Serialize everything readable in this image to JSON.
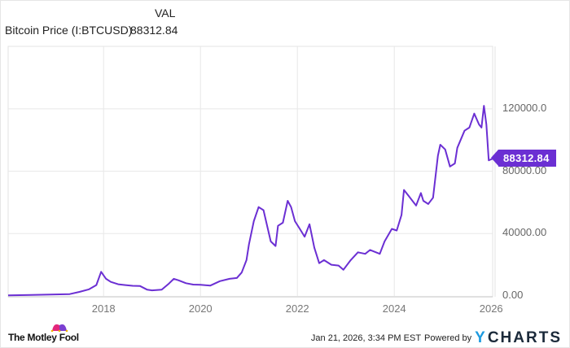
{
  "legend": {
    "column_header": "VAL",
    "series_name": "Bitcoin Price (I:BTCUSD)",
    "series_value": "88312.84"
  },
  "badge": {
    "value": "88312.84"
  },
  "footer": {
    "timestamp": "Jan 21, 2026, 3:34 PM EST",
    "powered_by": "Powered by",
    "provider_y": "Y",
    "provider_rest": "CHARTS",
    "brand": "The Motley Fool"
  },
  "colors": {
    "line": "#6b2fd3",
    "grid": "#e8e8e8",
    "brand_pink": "#e3277b",
    "brand_purple": "#7b3fd1",
    "ycharts_blue": "#1e9be0"
  },
  "chart_data": {
    "type": "line",
    "title": "Bitcoin Price (I:BTCUSD)",
    "xlabel": "",
    "ylabel": "",
    "ylim": [
      0,
      160000
    ],
    "xlim": [
      2016.03,
      2026.06
    ],
    "grid": true,
    "legend_position": "top-left",
    "y_ticks": [
      "0.00",
      "40000.00",
      "80000.00",
      "120000.0"
    ],
    "y_tick_values": [
      0,
      40000,
      80000,
      120000
    ],
    "x_ticks": [
      "2018",
      "2020",
      "2022",
      "2024",
      "2026"
    ],
    "x_tick_values": [
      2018,
      2020,
      2022,
      2024,
      2026
    ],
    "last_value": 88312.84,
    "series": [
      {
        "name": "Bitcoin Price (I:BTCUSD)",
        "x": [
          2016.03,
          2016.5,
          2017.0,
          2017.3,
          2017.5,
          2017.7,
          2017.85,
          2017.95,
          2018.05,
          2018.15,
          2018.3,
          2018.45,
          2018.6,
          2018.75,
          2018.9,
          2019.0,
          2019.2,
          2019.35,
          2019.45,
          2019.55,
          2019.7,
          2019.85,
          2020.0,
          2020.2,
          2020.4,
          2020.6,
          2020.75,
          2020.85,
          2020.95,
          2021.0,
          2021.1,
          2021.2,
          2021.3,
          2021.45,
          2021.55,
          2021.6,
          2021.7,
          2021.8,
          2021.87,
          2021.95,
          2022.05,
          2022.15,
          2022.25,
          2022.35,
          2022.45,
          2022.55,
          2022.7,
          2022.85,
          2022.95,
          2023.1,
          2023.25,
          2023.4,
          2023.5,
          2023.7,
          2023.8,
          2023.95,
          2024.05,
          2024.15,
          2024.2,
          2024.3,
          2024.45,
          2024.55,
          2024.6,
          2024.7,
          2024.8,
          2024.9,
          2024.95,
          2025.05,
          2025.15,
          2025.25,
          2025.3,
          2025.45,
          2025.55,
          2025.65,
          2025.75,
          2025.8,
          2025.85,
          2025.9,
          2025.95,
          2026.05
        ],
        "values": [
          430,
          650,
          1000,
          1200,
          2600,
          4300,
          7000,
          15500,
          11000,
          9000,
          7500,
          7000,
          6500,
          6400,
          4000,
          3600,
          4000,
          8000,
          11000,
          10000,
          8200,
          7300,
          7200,
          6600,
          9500,
          11000,
          11500,
          15000,
          23000,
          33000,
          48000,
          57000,
          55000,
          35000,
          32000,
          45000,
          47000,
          61000,
          57000,
          48000,
          43000,
          38000,
          46000,
          31000,
          21000,
          23000,
          20000,
          19500,
          16800,
          23000,
          28000,
          27000,
          29500,
          27000,
          35000,
          43000,
          42000,
          52000,
          68000,
          64000,
          58000,
          66000,
          61000,
          59000,
          63000,
          90000,
          97000,
          94000,
          83000,
          85000,
          95000,
          106000,
          108000,
          117000,
          110000,
          108000,
          122000,
          110000,
          87000,
          88312.84
        ]
      }
    ]
  }
}
